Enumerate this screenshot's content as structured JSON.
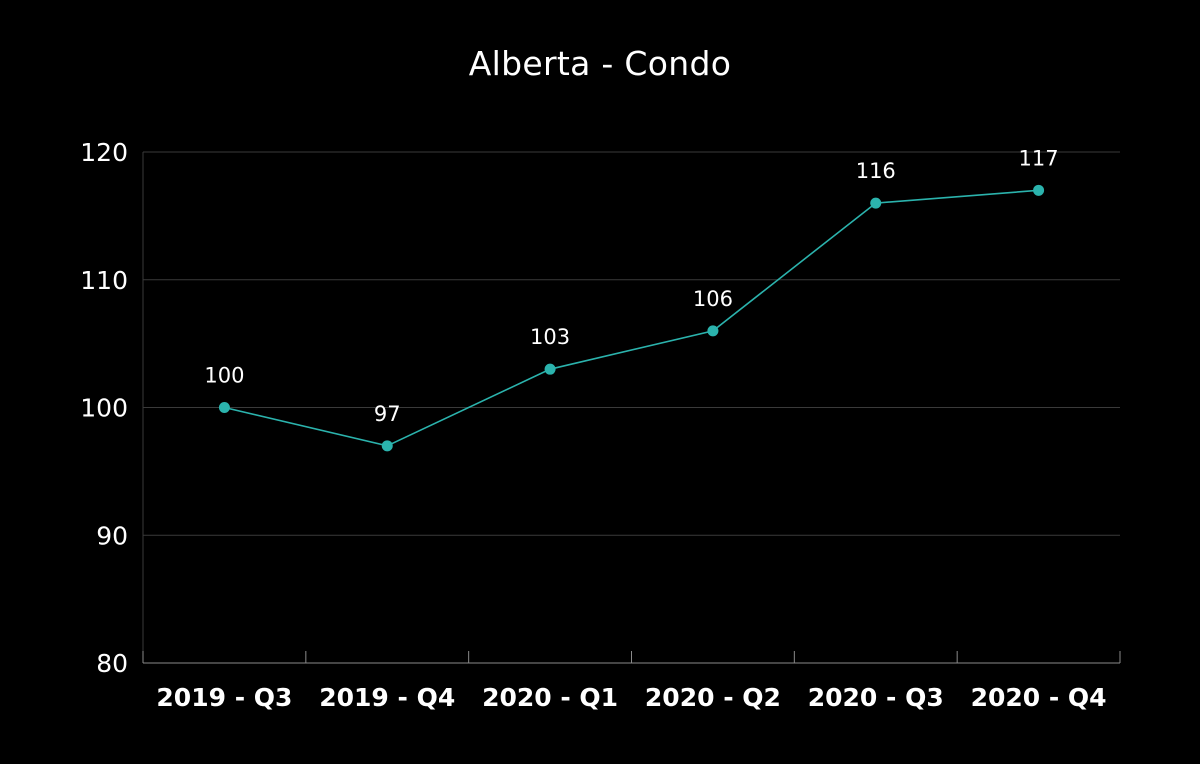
{
  "colors": {
    "background": "#000000",
    "line": "#2bb3ad",
    "grid": "#3a3a3a",
    "axis": "#8a8a8a",
    "text": "#ffffff"
  },
  "chart_data": {
    "type": "line",
    "title": "Alberta - Condo",
    "xlabel": "",
    "ylabel": "",
    "categories": [
      "2019 - Q3",
      "2019 - Q4",
      "2020 - Q1",
      "2020 - Q2",
      "2020 - Q3",
      "2020 - Q4"
    ],
    "series": [
      {
        "values": [
          100,
          97,
          103,
          106,
          116,
          117
        ]
      }
    ],
    "ylim": [
      80,
      120
    ],
    "yticks": [
      120,
      110,
      100,
      90,
      80
    ],
    "grid": true,
    "legend": "none",
    "data_labels": true
  }
}
